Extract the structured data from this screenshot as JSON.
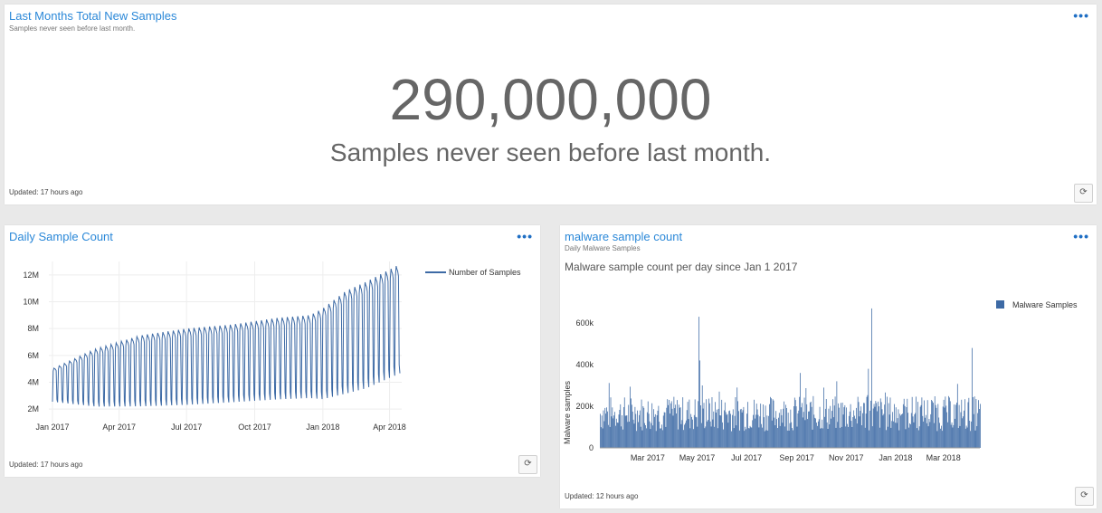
{
  "panel_top": {
    "title": "Last Months Total New Samples",
    "subtitle": "Samples never seen before last month.",
    "menu": "•••",
    "big_value": "290,000,000",
    "big_label": "Samples never seen before last month.",
    "updated": "Updated: 17 hours ago",
    "refresh_icon": "refresh-icon"
  },
  "panel_left": {
    "title": "Daily Sample Count",
    "menu": "•••",
    "updated": "Updated: 17 hours ago",
    "refresh_icon": "refresh-icon",
    "legend": "Number of Samples",
    "y_ticks": [
      "2M",
      "4M",
      "6M",
      "8M",
      "10M",
      "12M"
    ],
    "x_ticks": [
      "Jan 2017",
      "Apr 2017",
      "Jul 2017",
      "Oct 2017",
      "Jan 2018",
      "Apr 2018"
    ]
  },
  "panel_right": {
    "title": "malware sample count",
    "subtitle": "Daily Malware Samples",
    "caption": "Malware sample count per day since Jan 1 2017",
    "menu": "•••",
    "updated": "Updated: 12 hours ago",
    "refresh_icon": "refresh-icon",
    "legend": "Malware Samples",
    "ylabel": "Malware samples",
    "y_ticks": [
      "0",
      "200k",
      "400k",
      "600k"
    ],
    "x_ticks": [
      "Mar 2017",
      "May 2017",
      "Jul 2017",
      "Sep 2017",
      "Nov 2017",
      "Jan 2018",
      "Mar 2018"
    ]
  },
  "chart_data": [
    {
      "type": "line",
      "series": [
        {
          "name": "Number of Samples",
          "color": "#3d6aa5"
        }
      ],
      "x_range": [
        "2017-01-01",
        "2018-04-15"
      ],
      "ylim": [
        1000000,
        13000000
      ],
      "weekly_cycle": true,
      "envelope": [
        {
          "date": "2017-01-01",
          "low": 2500000,
          "high": 5000000
        },
        {
          "date": "2017-03-01",
          "low": 2100000,
          "high": 6500000
        },
        {
          "date": "2017-05-01",
          "low": 2100000,
          "high": 7500000
        },
        {
          "date": "2017-07-01",
          "low": 2200000,
          "high": 8000000
        },
        {
          "date": "2017-09-01",
          "low": 2400000,
          "high": 8300000
        },
        {
          "date": "2017-11-01",
          "low": 2600000,
          "high": 8800000
        },
        {
          "date": "2017-12-15",
          "low": 2700000,
          "high": 9000000
        },
        {
          "date": "2018-01-01",
          "low": 2600000,
          "high": 9500000
        },
        {
          "date": "2018-02-01",
          "low": 3000000,
          "high": 10800000
        },
        {
          "date": "2018-03-01",
          "low": 3400000,
          "high": 11500000
        },
        {
          "date": "2018-04-15",
          "low": 4500000,
          "high": 12800000
        }
      ]
    },
    {
      "type": "bar",
      "series": [
        {
          "name": "Malware Samples",
          "color": "#3d6aa5"
        }
      ],
      "x_range": [
        "2017-01-01",
        "2018-04-15"
      ],
      "ylim": [
        0,
        700000
      ],
      "typical_range": [
        80000,
        250000
      ],
      "spikes": [
        {
          "date": "2017-05-03",
          "value": 630000
        },
        {
          "date": "2017-05-04",
          "value": 420000
        },
        {
          "date": "2017-09-05",
          "value": 360000
        },
        {
          "date": "2017-11-28",
          "value": 380000
        },
        {
          "date": "2017-12-02",
          "value": 670000
        },
        {
          "date": "2018-04-05",
          "value": 480000
        }
      ]
    }
  ]
}
